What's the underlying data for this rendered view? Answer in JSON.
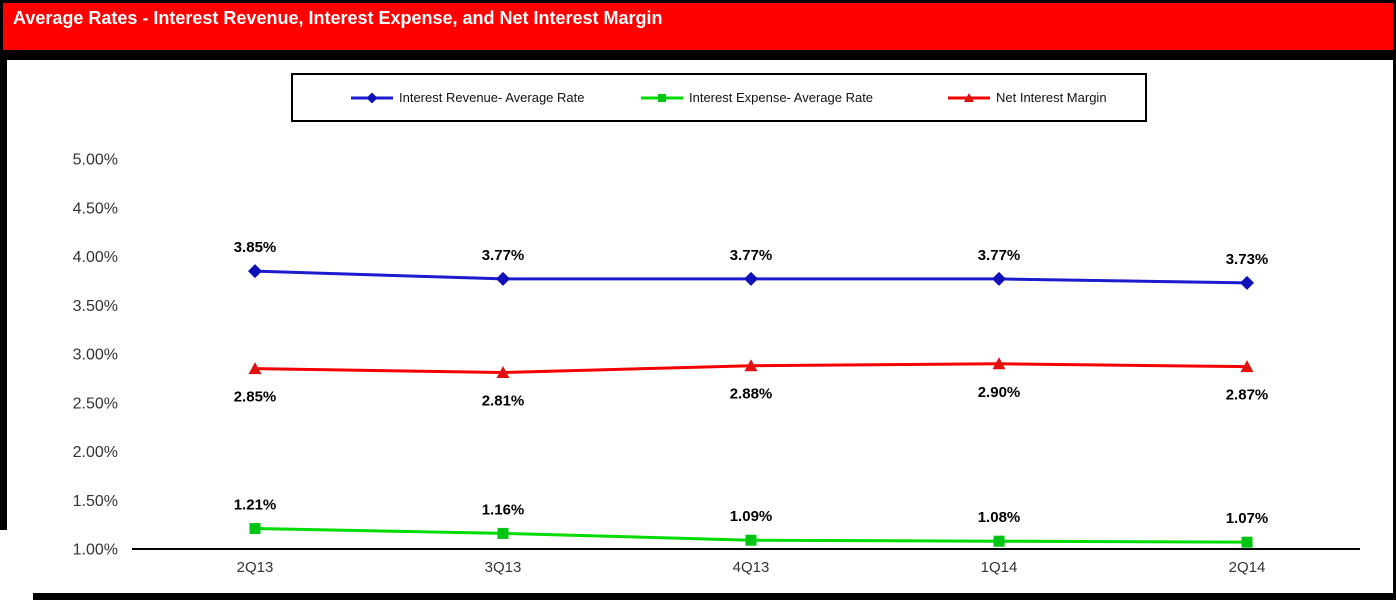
{
  "title_bar": {
    "text": "Average Rates - Interest Revenue, Interest Expense, and Net Interest Margin",
    "background_color": "#FE0000",
    "text_color": "#FFFFFF"
  },
  "chart_data": {
    "type": "line",
    "title": "Average Rates - Interest Revenue, Interest Expense, and Net Interest Margin",
    "categories": [
      "2Q13",
      "3Q13",
      "4Q13",
      "1Q14",
      "2Q14"
    ],
    "series": [
      {
        "name": "Interest Revenue- Average Rate",
        "marker": "diamond",
        "color": "#1C1CCE",
        "marker_color": "#1010B8",
        "values": [
          3.85,
          3.77,
          3.77,
          3.77,
          3.73
        ],
        "data_labels": [
          "3.85%",
          "3.77%",
          "3.77%",
          "3.77%",
          "3.73%"
        ],
        "label_position": "above"
      },
      {
        "name": "Interest Expense- Average Rate",
        "marker": "square",
        "color": "#00DC00",
        "marker_color": "#00C414",
        "values": [
          1.21,
          1.16,
          1.09,
          1.08,
          1.07
        ],
        "data_labels": [
          "1.21%",
          "1.16%",
          "1.09%",
          "1.08%",
          "1.07%"
        ],
        "label_position": "above"
      },
      {
        "name": "Net Interest Margin",
        "marker": "triangle",
        "color": "#F40000",
        "marker_color": "#E01010",
        "values": [
          2.85,
          2.81,
          2.88,
          2.9,
          2.87
        ],
        "data_labels": [
          "2.85%",
          "2.81%",
          "2.88%",
          "2.90%",
          "2.87%"
        ],
        "label_position": "below"
      }
    ],
    "y_axis": {
      "tick_labels": [
        "5.00%",
        "4.50%",
        "4.00%",
        "3.50%",
        "3.00%",
        "2.50%",
        "2.00%",
        "1.50%",
        "1.00%"
      ],
      "min": 1.0,
      "max": 5.0,
      "step": 0.5
    },
    "grid": false,
    "legend_position": "top"
  }
}
